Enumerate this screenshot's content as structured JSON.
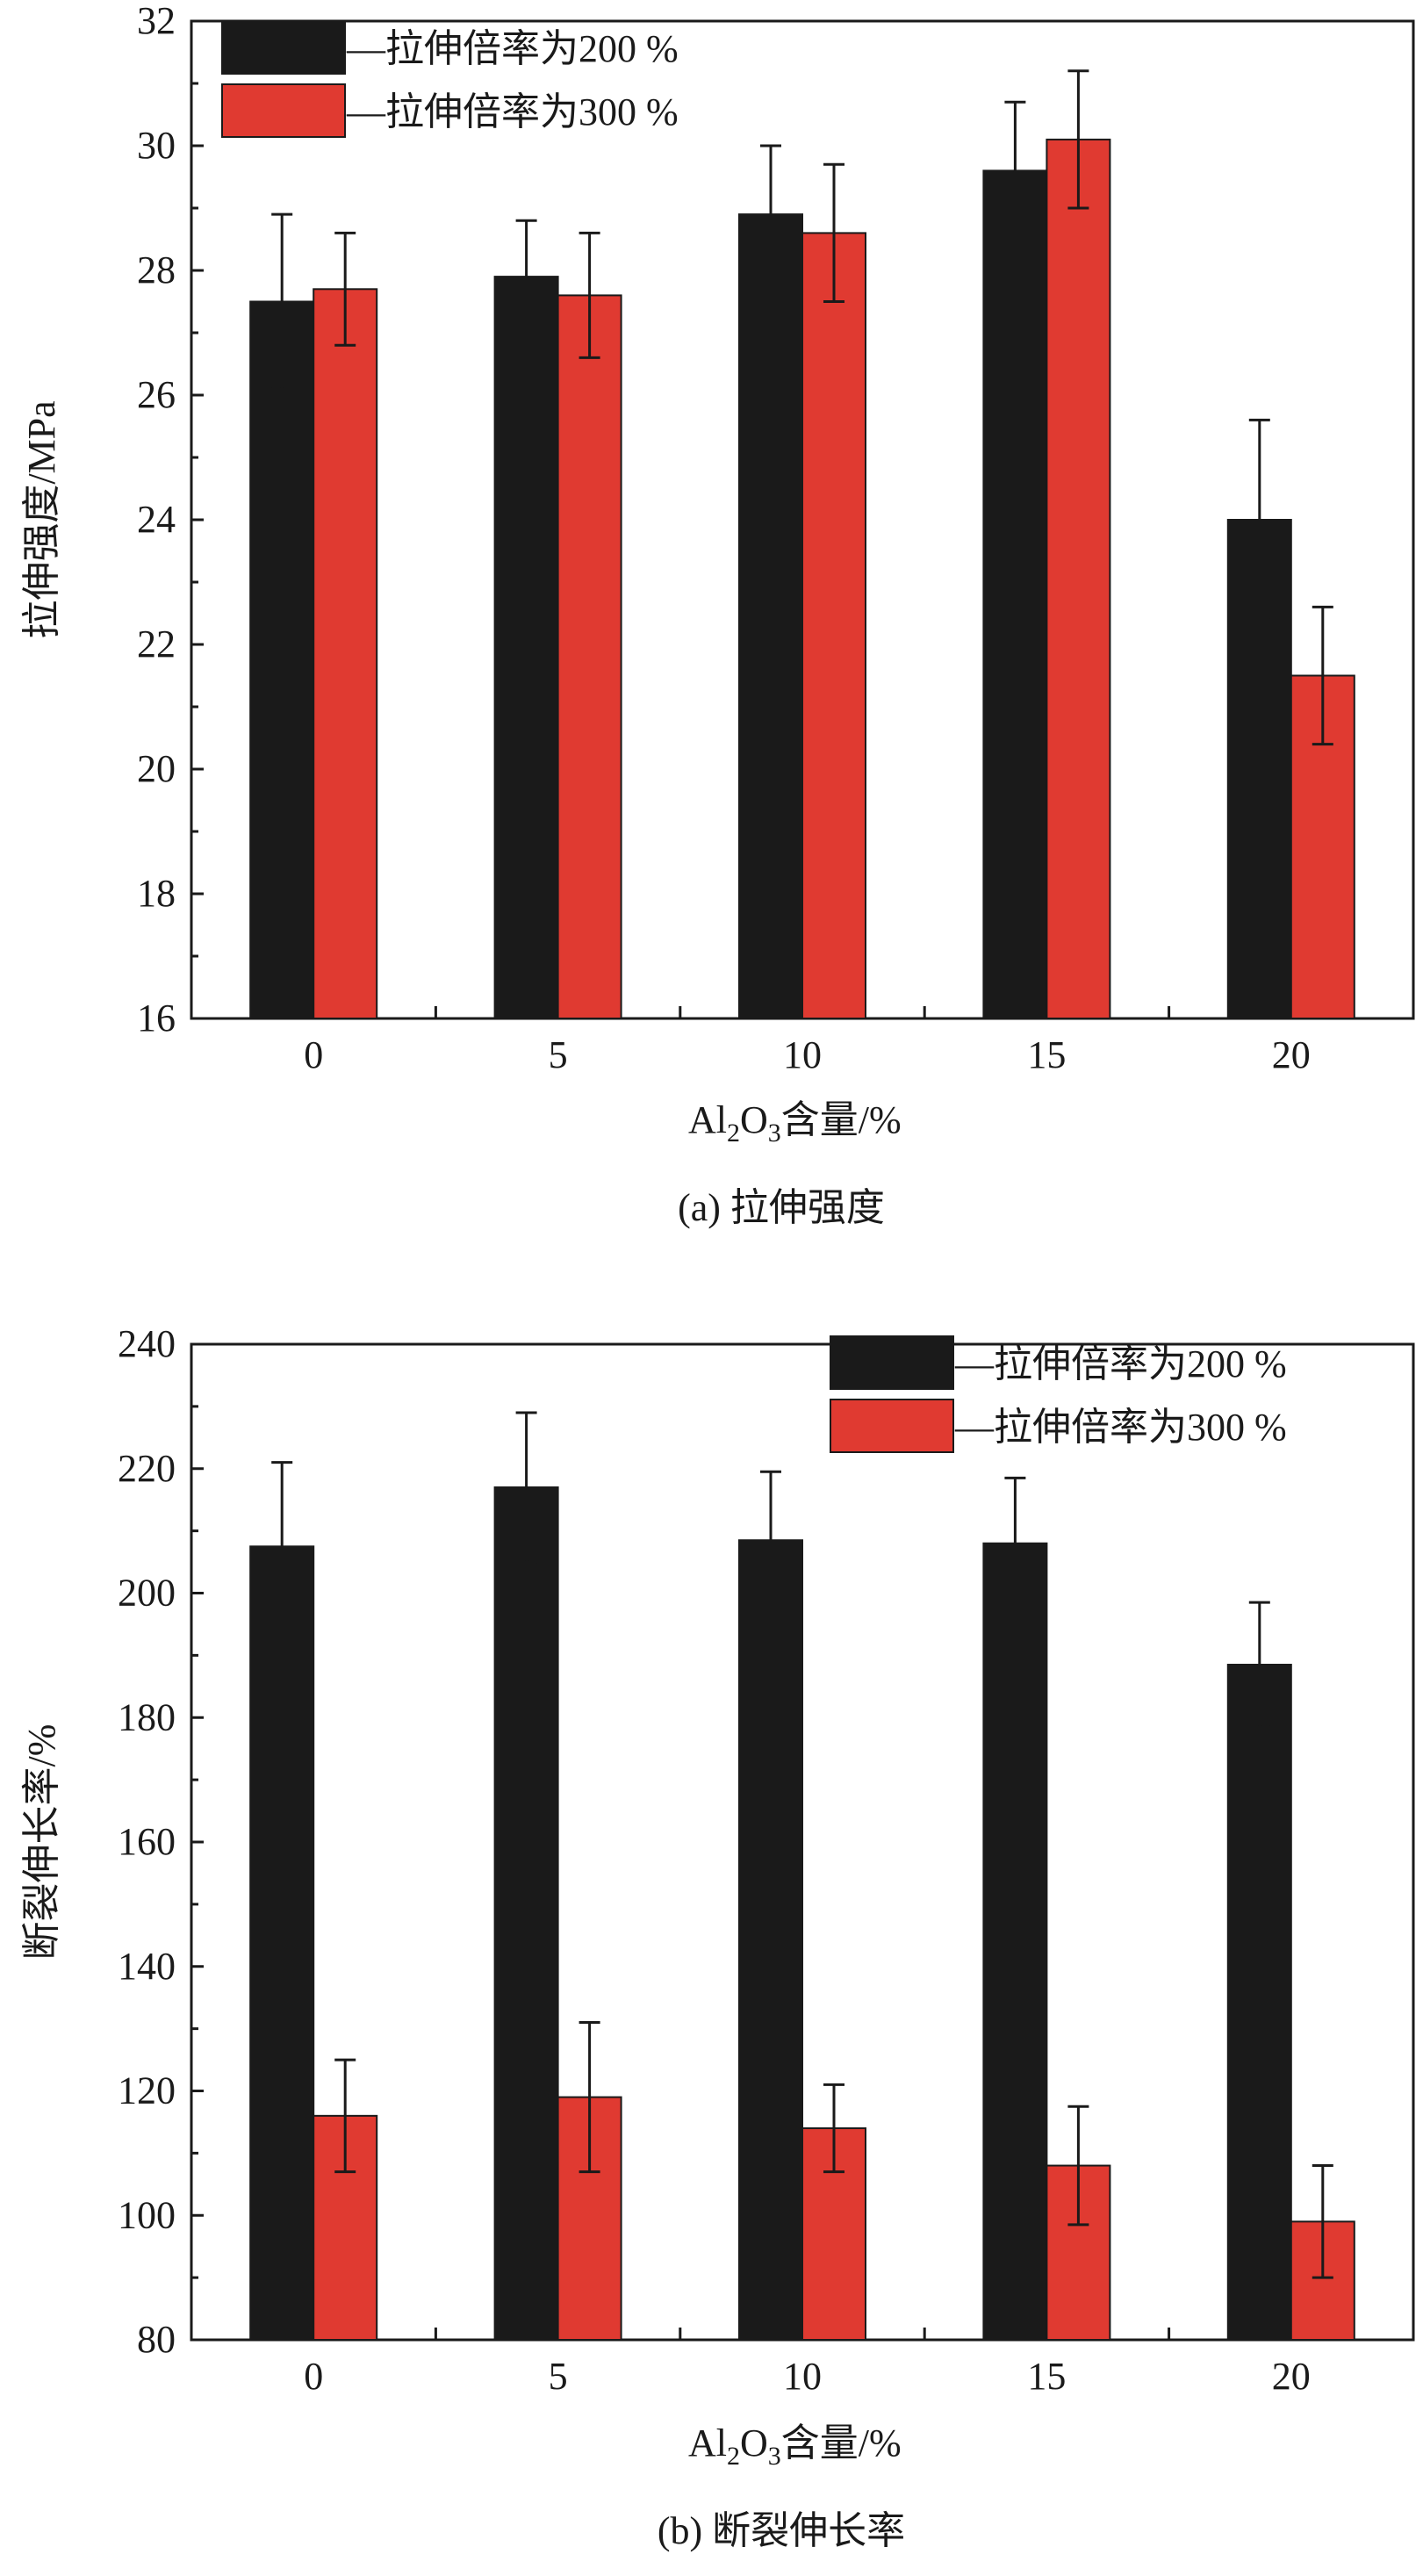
{
  "colors": {
    "series_200": "#1a1a1a",
    "series_300": "#e03a31",
    "axis": "#1a1a1a"
  },
  "chart_data": [
    {
      "type": "bar",
      "title": "",
      "caption": "(a) 拉伸强度",
      "xlabel": "Al2O3含量/%",
      "ylabel": "拉伸强度/MPa",
      "categories": [
        "0",
        "5",
        "10",
        "15",
        "20"
      ],
      "ylim": [
        16,
        32
      ],
      "yticks": [
        16,
        18,
        20,
        22,
        24,
        26,
        28,
        30,
        32
      ],
      "legend_position": "top-left",
      "grid": false,
      "series": [
        {
          "name": "—拉伸倍率为200 %",
          "color": "#1a1a1a",
          "values": [
            27.5,
            27.9,
            28.9,
            29.6,
            24.0
          ],
          "errors": [
            1.4,
            0.9,
            1.1,
            1.1,
            1.6
          ]
        },
        {
          "name": "—拉伸倍率为300 %",
          "color": "#e03a31",
          "values": [
            27.7,
            27.6,
            28.6,
            30.1,
            21.5
          ],
          "errors": [
            0.9,
            1.0,
            1.1,
            1.1,
            1.1
          ]
        }
      ]
    },
    {
      "type": "bar",
      "title": "",
      "caption": "(b) 断裂伸长率",
      "xlabel": "Al2O3含量/%",
      "ylabel": "断裂伸长率/%",
      "categories": [
        "0",
        "5",
        "10",
        "15",
        "20"
      ],
      "ylim": [
        80,
        240
      ],
      "yticks": [
        80,
        100,
        120,
        140,
        160,
        180,
        200,
        220,
        240
      ],
      "legend_position": "top-right",
      "grid": false,
      "series": [
        {
          "name": "—拉伸倍率为200 %",
          "color": "#1a1a1a",
          "values": [
            207.5,
            217.0,
            208.5,
            208.0,
            188.5
          ],
          "errors": [
            13.5,
            12.0,
            11.0,
            10.5,
            10.0
          ]
        },
        {
          "name": "—拉伸倍率为300 %",
          "color": "#e03a31",
          "values": [
            116.0,
            119.0,
            114.0,
            108.0,
            99.0
          ],
          "errors": [
            9.0,
            12.0,
            7.0,
            9.5,
            9.0
          ]
        }
      ]
    }
  ]
}
